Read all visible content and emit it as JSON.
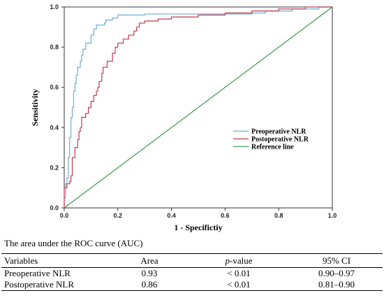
{
  "chart_data": {
    "type": "line",
    "xlabel": "1 - Specifictiy",
    "ylabel": "Sensitivity",
    "xlim": [
      0,
      1
    ],
    "ylim": [
      0,
      1
    ],
    "x_ticks": [
      "0.0",
      "0.2",
      "0.4",
      "0.6",
      "0.8",
      "1.0"
    ],
    "y_ticks": [
      "0.0",
      "0.2",
      "0.4",
      "0.6",
      "0.8",
      "1.0"
    ],
    "grid": false,
    "legend_position": "bottom-right",
    "series": [
      {
        "name": "Preoperative NLR",
        "color": "#6aaed6",
        "step": true,
        "points": [
          [
            0,
            0
          ],
          [
            0,
            0.05
          ],
          [
            0.005,
            0.12
          ],
          [
            0.01,
            0.15
          ],
          [
            0.015,
            0.25
          ],
          [
            0.02,
            0.35
          ],
          [
            0.025,
            0.45
          ],
          [
            0.03,
            0.5
          ],
          [
            0.035,
            0.58
          ],
          [
            0.04,
            0.62
          ],
          [
            0.045,
            0.66
          ],
          [
            0.05,
            0.7
          ],
          [
            0.06,
            0.73
          ],
          [
            0.065,
            0.76
          ],
          [
            0.07,
            0.79
          ],
          [
            0.08,
            0.82
          ],
          [
            0.1,
            0.86
          ],
          [
            0.11,
            0.89
          ],
          [
            0.12,
            0.91
          ],
          [
            0.15,
            0.92
          ],
          [
            0.155,
            0.935
          ],
          [
            0.18,
            0.945
          ],
          [
            0.2,
            0.96
          ],
          [
            0.3,
            0.965
          ],
          [
            0.7,
            0.97
          ],
          [
            0.75,
            0.98
          ],
          [
            0.85,
            0.99
          ],
          [
            0.95,
            1.0
          ],
          [
            1.0,
            1.0
          ]
        ]
      },
      {
        "name": "Postoperative NLR",
        "color": "#c8384f",
        "step": true,
        "points": [
          [
            0,
            0
          ],
          [
            0,
            0.1
          ],
          [
            0.01,
            0.12
          ],
          [
            0.02,
            0.13
          ],
          [
            0.025,
            0.16
          ],
          [
            0.03,
            0.25
          ],
          [
            0.04,
            0.3
          ],
          [
            0.05,
            0.34
          ],
          [
            0.055,
            0.38
          ],
          [
            0.06,
            0.4
          ],
          [
            0.065,
            0.45
          ],
          [
            0.08,
            0.47
          ],
          [
            0.09,
            0.5
          ],
          [
            0.1,
            0.53
          ],
          [
            0.11,
            0.56
          ],
          [
            0.12,
            0.58
          ],
          [
            0.125,
            0.6
          ],
          [
            0.13,
            0.63
          ],
          [
            0.14,
            0.67
          ],
          [
            0.145,
            0.7
          ],
          [
            0.16,
            0.73
          ],
          [
            0.18,
            0.77
          ],
          [
            0.19,
            0.8
          ],
          [
            0.2,
            0.82
          ],
          [
            0.22,
            0.84
          ],
          [
            0.24,
            0.86
          ],
          [
            0.26,
            0.88
          ],
          [
            0.27,
            0.9
          ],
          [
            0.28,
            0.92
          ],
          [
            0.3,
            0.93
          ],
          [
            0.35,
            0.94
          ],
          [
            0.4,
            0.95
          ],
          [
            0.5,
            0.96
          ],
          [
            0.6,
            0.97
          ],
          [
            0.7,
            0.98
          ],
          [
            0.8,
            0.99
          ],
          [
            0.9,
            1.0
          ],
          [
            1.0,
            1.0
          ]
        ]
      },
      {
        "name": "Reference line",
        "color": "#3a9a4a",
        "step": false,
        "points": [
          [
            0,
            0
          ],
          [
            1,
            1
          ]
        ]
      }
    ]
  },
  "auc_caption": "The area under the ROC curve (AUC)",
  "auc_table": {
    "headers": {
      "variables": "Variables",
      "area": "Area",
      "pvalue_italic": "p",
      "pvalue_suffix": "-value",
      "ci": "95% CI"
    },
    "rows": [
      {
        "variable": "Preoperative NLR",
        "area": "0.93",
        "pvalue": "< 0.01",
        "ci": "0.90–0.97"
      },
      {
        "variable": "Postoperative NLR",
        "area": "0.86",
        "pvalue": "< 0.01",
        "ci": "0.81–0.90"
      }
    ]
  }
}
